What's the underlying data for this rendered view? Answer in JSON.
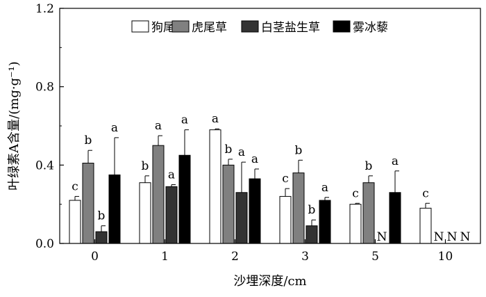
{
  "chart_data": {
    "type": "bar",
    "ylabel": "叶绿素A含量/(mg·g⁻¹)",
    "xlabel": "沙埋深度/cm",
    "categories": [
      "0",
      "1",
      "2",
      "3",
      "5",
      "10"
    ],
    "ylim": [
      0,
      1.2
    ],
    "yticks": [
      "0.0",
      "0.4",
      "0.8",
      "1.2"
    ],
    "legend_position": "top-right",
    "series": [
      {
        "name": "狗尾草",
        "color": "#ffffff",
        "values": [
          0.22,
          0.31,
          0.58,
          0.24,
          0.2,
          0.18
        ],
        "errors": [
          0.02,
          0.035,
          0.005,
          0.04,
          0.005,
          0.025
        ],
        "labels": [
          "c",
          "b",
          "a",
          "c",
          "c",
          "c"
        ]
      },
      {
        "name": "虎尾草",
        "color": "#808080",
        "values": [
          0.41,
          0.5,
          0.4,
          0.36,
          0.31,
          null
        ],
        "errors": [
          0.065,
          0.05,
          0.03,
          0.065,
          0.035,
          null
        ],
        "labels": [
          "b",
          "a",
          "b",
          "b",
          "b",
          "N"
        ]
      },
      {
        "name": "白茎盐生草",
        "color": "#333333",
        "values": [
          0.06,
          0.29,
          0.26,
          0.09,
          null,
          null
        ],
        "errors": [
          0.03,
          0.01,
          0.155,
          0.03,
          null,
          null
        ],
        "labels": [
          "b",
          "a",
          "a",
          "b",
          "N",
          "N"
        ]
      },
      {
        "name": "雾冰藜",
        "color": "#000000",
        "values": [
          0.35,
          0.45,
          0.33,
          0.22,
          0.26,
          null
        ],
        "errors": [
          0.19,
          0.13,
          0.05,
          0.015,
          0.11,
          null
        ],
        "labels": [
          "a",
          "a",
          "a",
          "a",
          "a",
          "N"
        ]
      }
    ]
  }
}
